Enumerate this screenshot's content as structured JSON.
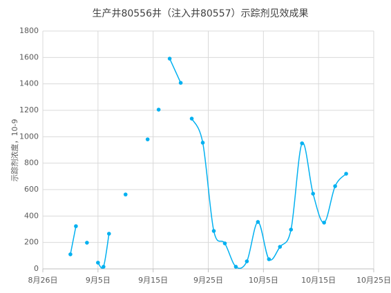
{
  "chart_data": {
    "type": "scatter_smooth",
    "title": "生产井80556井（注入井80557）示踪剂见效成果",
    "y_label": "示踪剂浓度，10-9",
    "series": [
      {
        "name": "示踪剂浓度",
        "color": "#00b0f0",
        "x": [
          "08-31",
          "09-01",
          null,
          "09-03",
          null,
          "09-05",
          "09-06",
          "09-07",
          null,
          "09-10",
          null,
          "09-14",
          null,
          "09-16",
          null,
          "09-18",
          "09-20",
          null,
          "09-22",
          "09-24",
          "09-26",
          "09-28",
          "09-30",
          "10-02",
          "10-04",
          "10-06",
          "10-08",
          "10-10",
          "10-12",
          "10-14",
          "10-16",
          "10-18",
          "10-20"
        ],
        "values": [
          110,
          323,
          null,
          198,
          null,
          47,
          16,
          266,
          null,
          563,
          null,
          980,
          null,
          1205,
          null,
          1591,
          1408,
          null,
          1137,
          955,
          287,
          193,
          16,
          57,
          355,
          73,
          167,
          297,
          950,
          569,
          350,
          626,
          720
        ]
      }
    ],
    "xlim": [
      "08-26",
      "10-25"
    ],
    "xticks": [
      {
        "value": "08-26",
        "label": "8月26日"
      },
      {
        "value": "09-05",
        "label": "9月5日"
      },
      {
        "value": "09-15",
        "label": "9月15日"
      },
      {
        "value": "09-25",
        "label": "9月25日"
      },
      {
        "value": "10-05",
        "label": "10月5日"
      },
      {
        "value": "10-15",
        "label": "10月15日"
      },
      {
        "value": "10-25",
        "label": "10月25日"
      }
    ],
    "ylim": [
      0,
      1800
    ],
    "yticks": [
      0,
      200,
      400,
      600,
      800,
      1000,
      1200,
      1400,
      1600,
      1800
    ],
    "grid": true
  }
}
